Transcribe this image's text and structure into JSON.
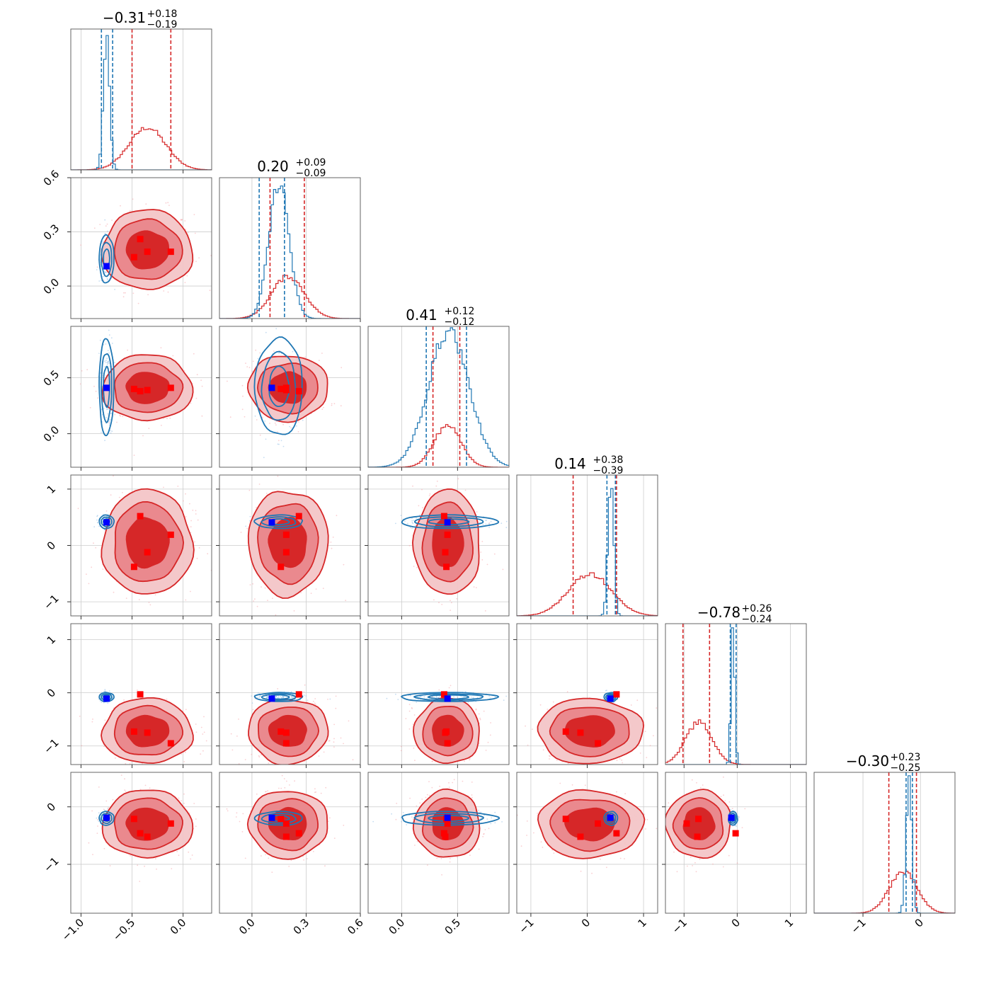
{
  "chart_data": {
    "type": "corner",
    "n_params": 6,
    "colors": {
      "red": "#d62728",
      "blue": "#1f77b4",
      "red_fill": "#e9868a",
      "marker_red": "#ff0000",
      "marker_blue": "#0000ff",
      "grid": "#cccccc"
    },
    "titles": [
      {
        "main": "−0.31",
        "upper": "+0.18",
        "lower": "−0.19"
      },
      {
        "main": "0.20",
        "upper": "+0.09",
        "lower": "−0.09"
      },
      {
        "main": "0.41",
        "upper": "+0.12",
        "lower": "−0.12"
      },
      {
        "main": "0.14",
        "upper": "+0.38",
        "lower": "−0.39"
      },
      {
        "main": "−0.78",
        "upper": "+0.26",
        "lower": "−0.24"
      },
      {
        "main": "−0.30",
        "upper": "+0.23",
        "lower": "−0.25"
      }
    ],
    "ranges": [
      [
        -1.1,
        0.28
      ],
      [
        -0.18,
        0.6
      ],
      [
        -0.3,
        0.96
      ],
      [
        -1.25,
        1.25
      ],
      [
        -1.35,
        1.3
      ],
      [
        -1.85,
        0.6
      ]
    ],
    "x_ticks": [
      {
        "values": [
          -1.0,
          -0.5,
          0.0
        ],
        "labels": [
          "−1.0",
          "−0.5",
          "0.0"
        ]
      },
      {
        "values": [
          0.0,
          0.3,
          0.6
        ],
        "labels": [
          "0.0",
          "0.3",
          "0.6"
        ]
      },
      {
        "values": [
          0.0,
          0.5
        ],
        "labels": [
          "0.0",
          "0.5"
        ]
      },
      {
        "values": [
          -1,
          0,
          1
        ],
        "labels": [
          "−1",
          "0",
          "1"
        ]
      },
      {
        "values": [
          -1,
          0,
          1
        ],
        "labels": [
          "−1",
          "0",
          "1"
        ]
      },
      {
        "values": [
          -1,
          0
        ],
        "labels": [
          "−1",
          "0"
        ]
      }
    ],
    "y_ticks": [
      null,
      {
        "values": [
          0.0,
          0.3,
          0.6
        ],
        "labels": [
          "0.0",
          "0.3",
          "0.6"
        ]
      },
      {
        "values": [
          0.0,
          0.5
        ],
        "labels": [
          "0.0",
          "0.5"
        ]
      },
      {
        "values": [
          -1,
          0,
          1
        ],
        "labels": [
          "−1",
          "0",
          "1"
        ]
      },
      {
        "values": [
          -1,
          0,
          1
        ],
        "labels": [
          "−1",
          "0",
          "1"
        ]
      },
      {
        "values": [
          -1,
          0
        ],
        "labels": [
          "−1",
          "0"
        ]
      }
    ],
    "red": {
      "mean": [
        -0.35,
        0.2,
        0.41,
        0.05,
        -0.72,
        -0.3
      ],
      "sigma": [
        0.18,
        0.09,
        0.12,
        0.38,
        0.25,
        0.24
      ],
      "quantiles": [
        [
          -0.5,
          -0.12
        ],
        [
          0.1,
          0.29
        ],
        [
          0.28,
          0.52
        ],
        [
          -0.25,
          0.52
        ],
        [
          -1.02,
          -0.52
        ],
        [
          -0.55,
          -0.07
        ]
      ],
      "hist_peak": 0.3
    },
    "blue": {
      "mean": [
        -0.75,
        0.15,
        0.42,
        0.42,
        -0.08,
        -0.2
      ],
      "sigma": [
        0.03,
        0.055,
        0.18,
        0.05,
        0.035,
        0.05
      ],
      "quantiles": [
        [
          -0.8,
          -0.69
        ],
        [
          0.04,
          0.18
        ],
        [
          0.22,
          0.58
        ],
        [
          0.35,
          0.5
        ],
        [
          -0.13,
          -0.02
        ],
        [
          -0.25,
          -0.14
        ]
      ],
      "hist_peak": 0.97
    },
    "truth_blue": [
      -0.75,
      0.11,
      0.41,
      0.41,
      -0.11,
      -0.19
    ],
    "truth_red": [
      [
        -0.42,
        0.26,
        0.38,
        0.52,
        -0.03,
        -0.46
      ],
      [
        -0.35,
        0.19,
        0.39,
        -0.12,
        -0.75,
        -0.52
      ],
      [
        -0.12,
        0.19,
        0.41,
        0.19,
        -0.95,
        -0.29
      ],
      [
        -0.48,
        0.16,
        0.4,
        -0.38,
        -0.73,
        -0.21
      ]
    ]
  }
}
